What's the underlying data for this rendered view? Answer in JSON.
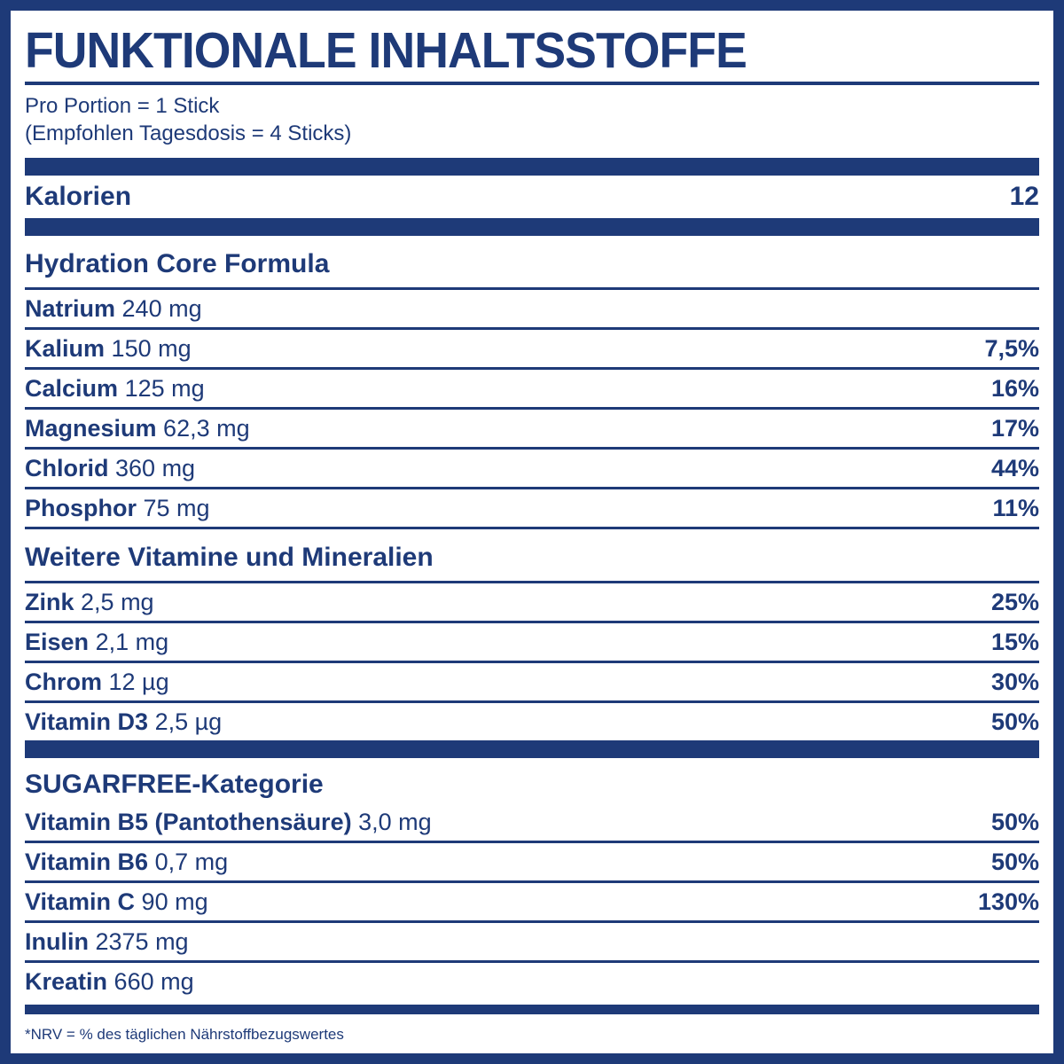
{
  "colors": {
    "accent_navy": "#1e3a78",
    "background": "#ffffff"
  },
  "header": {
    "title": "FUNKTIONALE INHALTSSTOFFE",
    "serving_line1": "Pro Portion = 1 Stick",
    "serving_line2": "(Empfohlen Tagesdosis = 4 Sticks)"
  },
  "calories": {
    "label": "Kalorien",
    "value": "12"
  },
  "sections": [
    {
      "title": "Hydration Core Formula",
      "rows": [
        {
          "name": "Natrium",
          "amount": "240 mg",
          "nrv": ""
        },
        {
          "name": "Kalium",
          "amount": "150 mg",
          "nrv": "7,5%"
        },
        {
          "name": "Calcium",
          "amount": "125 mg",
          "nrv": "16%"
        },
        {
          "name": "Magnesium",
          "amount": "62,3 mg",
          "nrv": "17%"
        },
        {
          "name": "Chlorid",
          "amount": "360 mg",
          "nrv": "44%"
        },
        {
          "name": "Phosphor",
          "amount": "75 mg",
          "nrv": "11%"
        }
      ]
    },
    {
      "title": "Weitere Vitamine und Mineralien",
      "rows": [
        {
          "name": "Zink",
          "amount": "2,5 mg",
          "nrv": "25%"
        },
        {
          "name": "Eisen",
          "amount": "2,1 mg",
          "nrv": "15%"
        },
        {
          "name": "Chrom",
          "amount": "12 µg",
          "nrv": "30%"
        },
        {
          "name": "Vitamin D3",
          "amount": "2,5 µg",
          "nrv": "50%"
        }
      ]
    },
    {
      "title": "SUGARFREE-Kategorie",
      "rows": [
        {
          "name": "Vitamin B5 (Pantothensäure)",
          "amount": "3,0 mg",
          "nrv": "50%"
        },
        {
          "name": "Vitamin B6",
          "amount": "0,7 mg",
          "nrv": "50%"
        },
        {
          "name": "Vitamin C",
          "amount": "90 mg",
          "nrv": "130%"
        },
        {
          "name": "Inulin",
          "amount": "2375 mg",
          "nrv": ""
        },
        {
          "name": "Kreatin",
          "amount": "660 mg",
          "nrv": ""
        }
      ]
    }
  ],
  "footnote": "*NRV = % des täglichen Nährstoffbezugswertes"
}
